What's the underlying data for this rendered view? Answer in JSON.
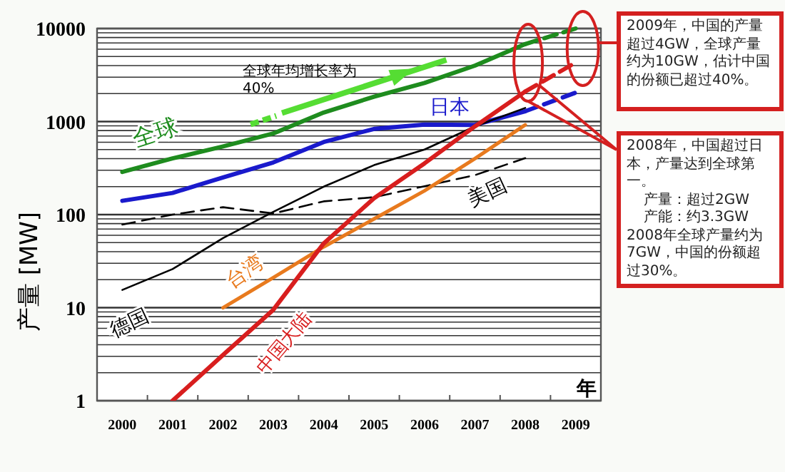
{
  "chart_data": {
    "type": "line",
    "categories": [
      "2000",
      "2001",
      "2002",
      "2003",
      "2004",
      "2005",
      "2006",
      "2007",
      "2008",
      "2009"
    ],
    "xlabel": "年",
    "ylabel": "产量 [MW]",
    "log": "y",
    "ylim": [
      1,
      10000
    ],
    "yticks": [
      1,
      10,
      100,
      1000,
      10000
    ],
    "grid": "y",
    "series": [
      {
        "name": "全球",
        "color": "#1e8c1e",
        "line_style": "solid",
        "values": [
          287,
          401,
          540,
          745,
          1250,
          1850,
          2600,
          4000,
          6800,
          null
        ]
      },
      {
        "color": "#1e8c1e",
        "line_style": "dashed",
        "values": [
          null,
          null,
          null,
          null,
          null,
          null,
          null,
          null,
          6800,
          10000
        ]
      },
      {
        "name": "日本",
        "color": "#1a1acc",
        "line_style": "solid",
        "values": [
          141,
          171,
          251,
          364,
          602,
          833,
          927,
          920,
          1290,
          null
        ]
      },
      {
        "color": "#1a1acc",
        "line_style": "dashed",
        "values": [
          null,
          null,
          null,
          null,
          null,
          null,
          null,
          null,
          1290,
          2040
        ]
      },
      {
        "name": "美国",
        "color": "#000000",
        "line_style": "dashed",
        "values": [
          78,
          100,
          120,
          103,
          139,
          154,
          202,
          266,
          405,
          null
        ]
      },
      {
        "name": "德国",
        "color": "#000000",
        "line_style": "solid",
        "values": [
          15.5,
          26,
          56,
          107,
          200,
          340,
          500,
          890,
          1400,
          null
        ]
      },
      {
        "name": "台湾",
        "color": "#e87a1e",
        "line_style": "solid",
        "values": [
          null,
          null,
          10,
          21,
          45,
          90,
          180,
          400,
          920,
          null
        ]
      },
      {
        "name": "中国大陆",
        "color": "#d81e1e",
        "line_style": "solid",
        "values": [
          null,
          1,
          3.1,
          9.5,
          49,
          150,
          355,
          890,
          2100,
          null
        ]
      },
      {
        "color": "#d81e1e",
        "line_style": "dashed",
        "values": [
          null,
          null,
          null,
          null,
          null,
          null,
          null,
          null,
          2100,
          4300
        ]
      }
    ],
    "annotations": [
      "全球年均增长率为40%",
      "2009年，中国的产量超过4GW，全球产量约为10GW，估计中国的份额已超过40%。",
      "2008年，中国超过日本，产量达到全球第一。",
      "产量：超过2GW",
      "产能：约3.3GW",
      "2008年全球产量约为7GW，中国的份额超过30%。"
    ]
  }
}
